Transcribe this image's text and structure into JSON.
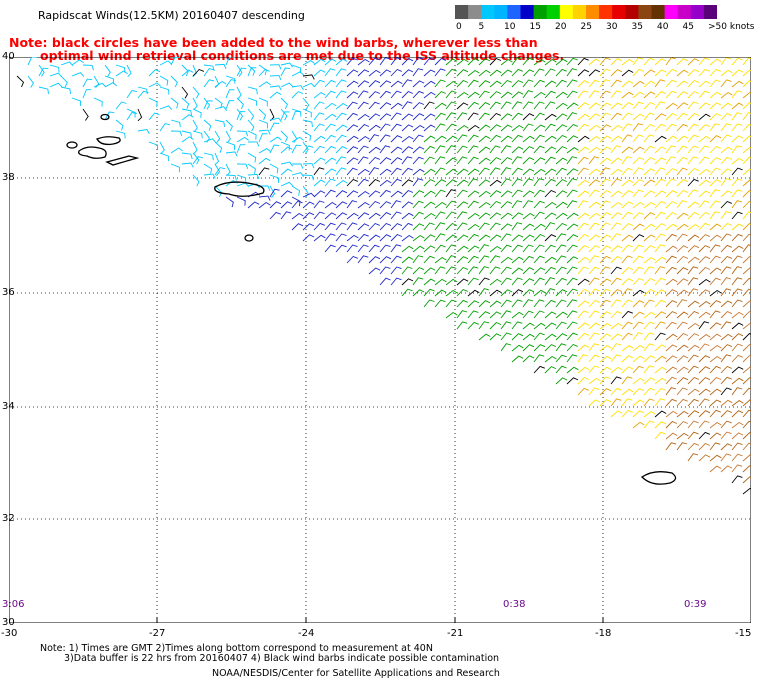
{
  "title": "Rapidscat Winds(12.5KM) 20160407 descending",
  "note_lines": [
    "Note: black circles have been added to the wind barbs, wherever less than",
    "optimal wind retrieval conditions are met due to the ISS altitude changes."
  ],
  "legend": {
    "labels": [
      "0",
      "5",
      "10",
      "15",
      "20",
      "25",
      "30",
      "35",
      "40",
      "45",
      ">50 knots"
    ],
    "colors": [
      "#555555",
      "#8c8c8c",
      "#00c8ff",
      "#00b4ff",
      "#1e64ff",
      "#0000c8",
      "#00a000",
      "#00d000",
      "#ffff00",
      "#ffd200",
      "#ff8c00",
      "#ff3200",
      "#e60000",
      "#b40000",
      "#8b4513",
      "#643200",
      "#ff00ff",
      "#c800c8",
      "#9600c8",
      "#5a0078"
    ]
  },
  "map": {
    "lat_labels": [
      "40",
      "38",
      "36",
      "34",
      "32",
      "30"
    ],
    "lon_labels": [
      "-30",
      "-27",
      "-24",
      "-21",
      "-18",
      "-15"
    ],
    "time_labels": [
      "3:06",
      "0:38",
      "0:39"
    ]
  },
  "footer": {
    "line1": "Note: 1) Times are GMT 2)Times along bottom correspond to measurement at 40N",
    "line2": "3)Data buffer is 22 hrs from 20160407 4) Black wind barbs indicate possible contamination",
    "line3": "NOAA/NESDIS/Center for Satellite Applications and Research"
  }
}
